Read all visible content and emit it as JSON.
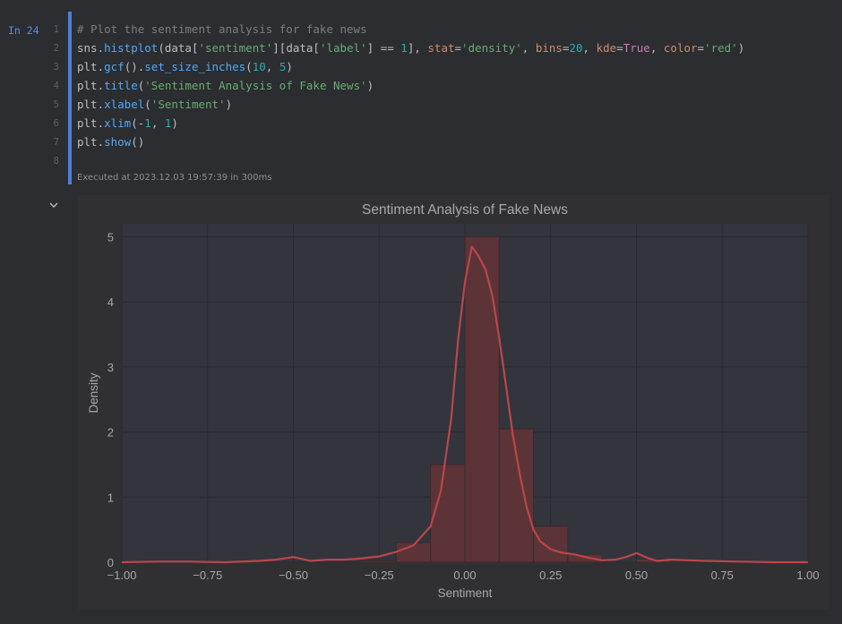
{
  "cell": {
    "prompt": "In 24",
    "line_numbers": [
      "1",
      "2",
      "3",
      "4",
      "5",
      "6",
      "7",
      "8"
    ],
    "executed": "Executed at 2023.12.03 19:57:39 in 300ms",
    "code": [
      [
        {
          "t": "# Plot the sentiment analysis for fake news",
          "c": "cm"
        }
      ],
      [
        {
          "t": "sns.",
          "c": ""
        },
        {
          "t": "histplot",
          "c": "fn"
        },
        {
          "t": "(data[",
          "c": ""
        },
        {
          "t": "'sentiment'",
          "c": "st"
        },
        {
          "t": "][data[",
          "c": ""
        },
        {
          "t": "'label'",
          "c": "st"
        },
        {
          "t": "] == ",
          "c": ""
        },
        {
          "t": "1",
          "c": "nu"
        },
        {
          "t": "], ",
          "c": ""
        },
        {
          "t": "stat",
          "c": "kw"
        },
        {
          "t": "=",
          "c": ""
        },
        {
          "t": "'density'",
          "c": "st"
        },
        {
          "t": ", ",
          "c": ""
        },
        {
          "t": "bins",
          "c": "kw"
        },
        {
          "t": "=",
          "c": ""
        },
        {
          "t": "20",
          "c": "nu"
        },
        {
          "t": ", ",
          "c": ""
        },
        {
          "t": "kde",
          "c": "kw"
        },
        {
          "t": "=",
          "c": ""
        },
        {
          "t": "True",
          "c": "bi"
        },
        {
          "t": ", ",
          "c": ""
        },
        {
          "t": "color",
          "c": "kw"
        },
        {
          "t": "=",
          "c": ""
        },
        {
          "t": "'red'",
          "c": "st"
        },
        {
          "t": ")",
          "c": ""
        }
      ],
      [
        {
          "t": "plt.",
          "c": ""
        },
        {
          "t": "gcf",
          "c": "fn"
        },
        {
          "t": "().",
          "c": ""
        },
        {
          "t": "set_size_inches",
          "c": "fn"
        },
        {
          "t": "(",
          "c": ""
        },
        {
          "t": "10",
          "c": "nu"
        },
        {
          "t": ", ",
          "c": ""
        },
        {
          "t": "5",
          "c": "nu"
        },
        {
          "t": ")",
          "c": ""
        }
      ],
      [
        {
          "t": "plt.",
          "c": ""
        },
        {
          "t": "title",
          "c": "fn"
        },
        {
          "t": "(",
          "c": ""
        },
        {
          "t": "'Sentiment Analysis of Fake News'",
          "c": "st"
        },
        {
          "t": ")",
          "c": ""
        }
      ],
      [
        {
          "t": "plt.",
          "c": ""
        },
        {
          "t": "xlabel",
          "c": "fn"
        },
        {
          "t": "(",
          "c": ""
        },
        {
          "t": "'Sentiment'",
          "c": "st"
        },
        {
          "t": ")",
          "c": ""
        }
      ],
      [
        {
          "t": "plt.",
          "c": ""
        },
        {
          "t": "xlim",
          "c": "fn"
        },
        {
          "t": "(-",
          "c": ""
        },
        {
          "t": "1",
          "c": "nu"
        },
        {
          "t": ", ",
          "c": ""
        },
        {
          "t": "1",
          "c": "nu"
        },
        {
          "t": ")",
          "c": ""
        }
      ],
      [
        {
          "t": "plt.",
          "c": ""
        },
        {
          "t": "show",
          "c": "fn"
        },
        {
          "t": "()",
          "c": ""
        }
      ],
      []
    ]
  },
  "colors": {
    "bar_fill": "#5c3337",
    "bar_edge": "#3a2a2c",
    "kde_line": "#b8474c",
    "plot_bg": "#33343c",
    "grid": "#2a2b31",
    "text": "#a8a8a8"
  },
  "chart_data": {
    "type": "bar",
    "title": "Sentiment Analysis of Fake News",
    "xlabel": "Sentiment",
    "ylabel": "Density",
    "xlim": [
      -1,
      1
    ],
    "ylim": [
      0,
      5.2
    ],
    "grid": true,
    "xticks": [
      -1,
      -0.75,
      -0.5,
      -0.25,
      0,
      0.25,
      0.5,
      0.75,
      1
    ],
    "xtick_labels": [
      "−1.00",
      "−0.75",
      "−0.50",
      "−0.25",
      "0.00",
      "0.25",
      "0.50",
      "0.75",
      "1.00"
    ],
    "yticks": [
      0,
      1,
      2,
      3,
      4,
      5
    ],
    "ytick_labels": [
      "0",
      "1",
      "2",
      "3",
      "4",
      "5"
    ],
    "bins": [
      {
        "x0": -0.4,
        "x1": -0.3,
        "y": 0.01
      },
      {
        "x0": -0.3,
        "x1": -0.2,
        "y": 0.02
      },
      {
        "x0": -0.2,
        "x1": -0.1,
        "y": 0.3
      },
      {
        "x0": -0.1,
        "x1": 0.0,
        "y": 1.5
      },
      {
        "x0": 0.0,
        "x1": 0.1,
        "y": 5.0
      },
      {
        "x0": 0.1,
        "x1": 0.2,
        "y": 2.05
      },
      {
        "x0": 0.2,
        "x1": 0.3,
        "y": 0.55
      },
      {
        "x0": 0.3,
        "x1": 0.4,
        "y": 0.12
      },
      {
        "x0": 0.5,
        "x1": 0.6,
        "y": 0.05
      }
    ],
    "kde": {
      "x": [
        -1.0,
        -0.9,
        -0.8,
        -0.7,
        -0.6,
        -0.55,
        -0.5,
        -0.45,
        -0.4,
        -0.35,
        -0.3,
        -0.25,
        -0.2,
        -0.15,
        -0.1,
        -0.07,
        -0.04,
        -0.02,
        0.0,
        0.02,
        0.04,
        0.06,
        0.08,
        0.1,
        0.12,
        0.14,
        0.16,
        0.18,
        0.2,
        0.22,
        0.25,
        0.28,
        0.32,
        0.36,
        0.4,
        0.44,
        0.47,
        0.5,
        0.53,
        0.56,
        0.6,
        0.7,
        0.8,
        0.9,
        1.0
      ],
      "y": [
        0.0,
        0.01,
        0.01,
        0.0,
        0.02,
        0.04,
        0.08,
        0.02,
        0.04,
        0.04,
        0.06,
        0.09,
        0.16,
        0.26,
        0.55,
        1.1,
        2.2,
        3.4,
        4.3,
        4.85,
        4.7,
        4.5,
        4.1,
        3.45,
        2.7,
        1.95,
        1.35,
        0.85,
        0.5,
        0.32,
        0.2,
        0.15,
        0.12,
        0.07,
        0.03,
        0.04,
        0.08,
        0.14,
        0.07,
        0.02,
        0.04,
        0.02,
        0.01,
        0.0,
        0.0
      ]
    }
  }
}
